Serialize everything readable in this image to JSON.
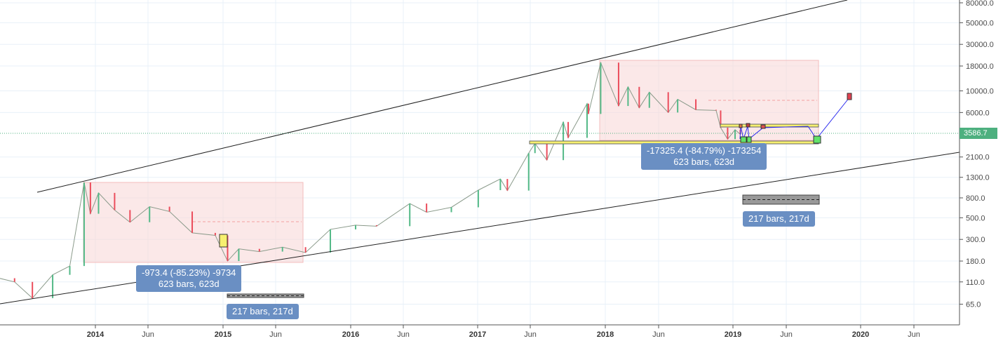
{
  "chart_data": {
    "type": "candlestick-line",
    "yscale": "log",
    "ylim": [
      40,
      100000
    ],
    "y_ticks": [
      "80000.0",
      "50000.0",
      "30000.0",
      "18000.0",
      "10000.0",
      "6000.0",
      "2100.0",
      "1300.0",
      "800.0",
      "500.0",
      "300.0",
      "180.0",
      "110.0",
      "65.0"
    ],
    "x_ticks": [
      {
        "label": "2014",
        "bold": true
      },
      {
        "label": "Jun"
      },
      {
        "label": "2015",
        "bold": true
      },
      {
        "label": "Jun"
      },
      {
        "label": "2016",
        "bold": true
      },
      {
        "label": "Jun"
      },
      {
        "label": "2017",
        "bold": true
      },
      {
        "label": "Jun"
      },
      {
        "label": "2018",
        "bold": true
      },
      {
        "label": "Jun"
      },
      {
        "label": "2019",
        "bold": true
      },
      {
        "label": "Jun"
      },
      {
        "label": "2020",
        "bold": true
      },
      {
        "label": "Jun"
      }
    ],
    "last_price": "3586.7",
    "grid": true,
    "series": [
      {
        "x": [
          "2013-04-01",
          "2013-05-15",
          "2013-07-05",
          "2013-09-01",
          "2013-10-20",
          "2013-11-30",
          "2013-12-18",
          "2014-01-10",
          "2014-02-25",
          "2014-04-10",
          "2014-06-05",
          "2014-08-01",
          "2014-10-05",
          "2014-12-10",
          "2015-01-14",
          "2015-02-15",
          "2015-04-15",
          "2015-06-20",
          "2015-08-25",
          "2015-11-04",
          "2016-01-15",
          "2016-03-15",
          "2016-06-18",
          "2016-08-05",
          "2016-10-15",
          "2016-12-31",
          "2017-03-05",
          "2017-03-25",
          "2017-05-25",
          "2017-06-12",
          "2017-07-16",
          "2017-09-01",
          "2017-09-15",
          "2017-11-08",
          "2017-11-12",
          "2017-12-17",
          "2018-02-06",
          "2018-03-05",
          "2018-04-06",
          "2018-05-05",
          "2018-06-28",
          "2018-07-25",
          "2018-09-15",
          "2018-11-12",
          "2018-11-25",
          "2018-12-15",
          "2019-01-05",
          "2019-01-20"
        ],
        "values": [
          120,
          110,
          75,
          130,
          160,
          1150,
          550,
          900,
          600,
          450,
          650,
          580,
          350,
          330,
          180,
          240,
          225,
          250,
          220,
          380,
          420,
          410,
          700,
          570,
          640,
          960,
          1250,
          950,
          2300,
          2900,
          1950,
          4800,
          3300,
          7400,
          5800,
          19500,
          7000,
          11000,
          6700,
          9700,
          6000,
          8200,
          6400,
          6300,
          4200,
          3200,
          4000,
          3586.7
        ]
      }
    ]
  },
  "annotations": {
    "drawdown_2014": {
      "stats": "-973.4 (-85.23%) -9734",
      "bars": "623 bars, 623d"
    },
    "range_2015": {
      "bars": "217 bars, 217d"
    },
    "drawdown_2018": {
      "stats": "-17325.4 (-84.79%) -173254",
      "bars": "623 bars, 623d"
    },
    "range_2019": {
      "bars": "217 bars, 217d"
    }
  },
  "colors": {
    "up": "#53b987",
    "down": "#eb4d5c",
    "box": "#f5c0c0",
    "label": "#6a8fc3",
    "yellow": "#f7f06f",
    "projection": "#2a2aee",
    "last_price": "#4db07f"
  }
}
